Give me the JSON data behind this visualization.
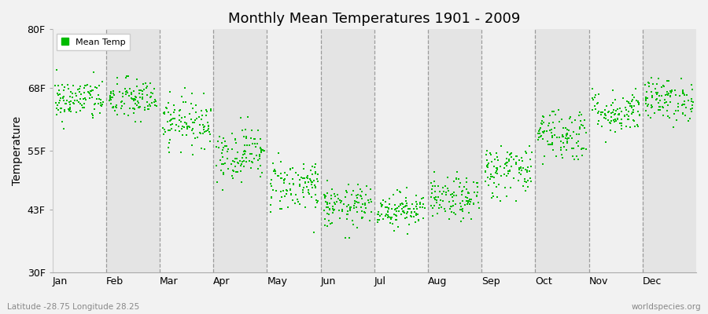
{
  "title": "Monthly Mean Temperatures 1901 - 2009",
  "ylabel": "Temperature",
  "ytick_labels": [
    "30F",
    "43F",
    "55F",
    "68F",
    "80F"
  ],
  "ytick_values": [
    30,
    43,
    55,
    68,
    80
  ],
  "ylim": [
    30,
    80
  ],
  "months": [
    "Jan",
    "Feb",
    "Mar",
    "Apr",
    "May",
    "Jun",
    "Jul",
    "Aug",
    "Sep",
    "Oct",
    "Nov",
    "Dec"
  ],
  "dot_color": "#00bb00",
  "background_color": "#f2f2f2",
  "plot_bg_color_light": "#f0f0f0",
  "plot_bg_color_dark": "#e4e4e4",
  "subtitle": "Latitude -28.75 Longitude 28.25",
  "watermark": "worldspecies.org",
  "legend_label": "Mean Temp",
  "mean_temps_F": [
    65.5,
    65.5,
    61.0,
    54.5,
    48.0,
    43.5,
    43.0,
    45.0,
    51.0,
    58.5,
    63.0,
    65.5
  ],
  "std_devs": [
    2.2,
    2.2,
    2.5,
    2.8,
    2.8,
    2.2,
    1.8,
    2.2,
    2.8,
    2.8,
    2.2,
    2.2
  ],
  "n_years": 109,
  "year_start": 1901,
  "year_end": 2009
}
